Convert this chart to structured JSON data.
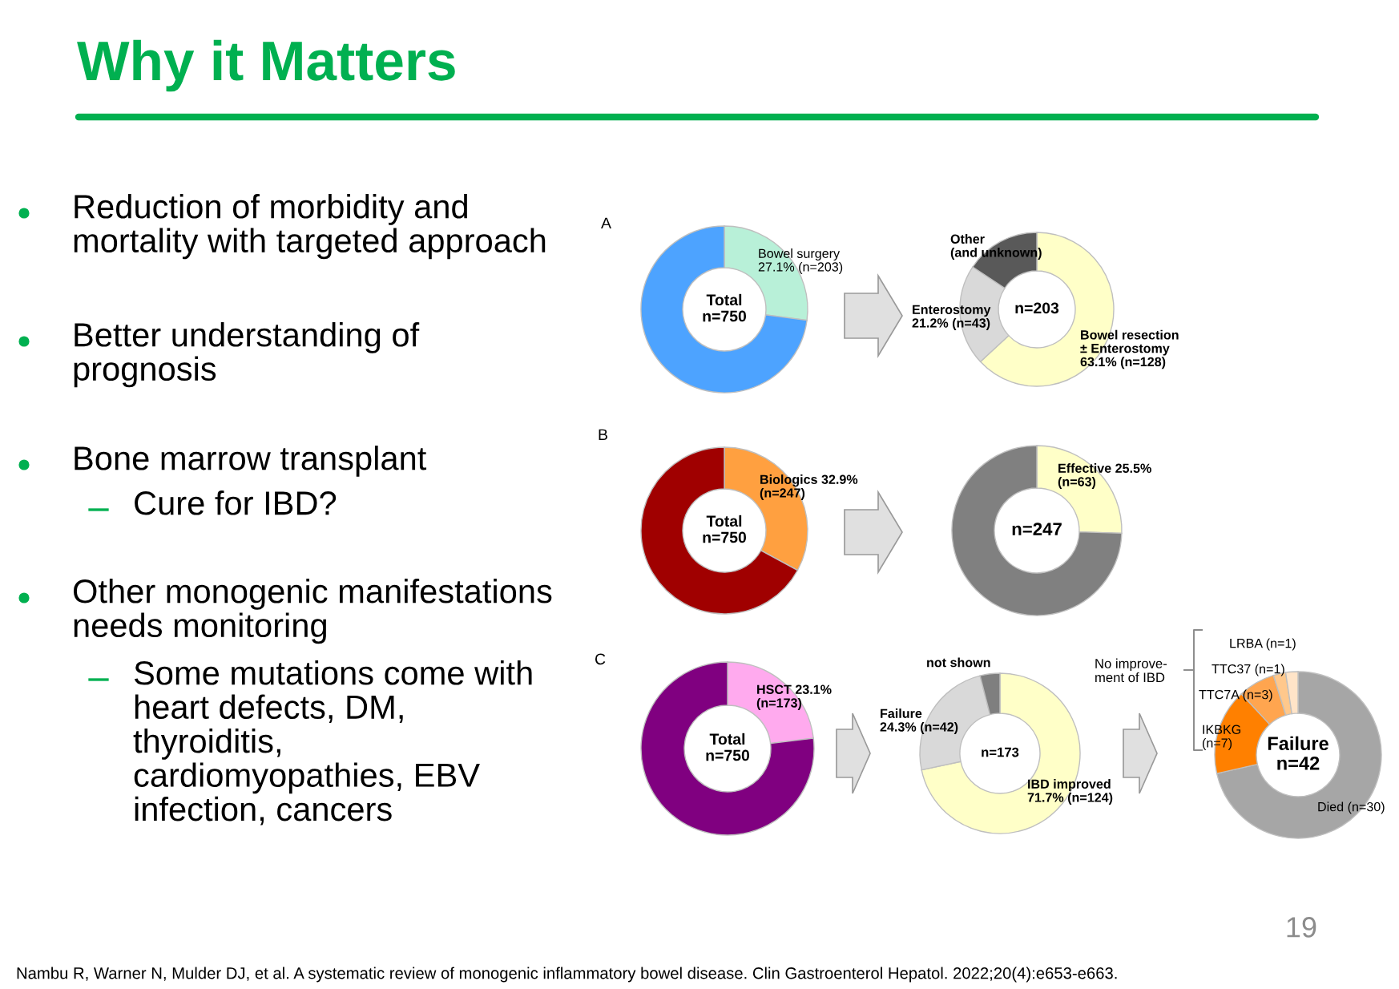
{
  "chart_data": [
    {
      "type": "other",
      "title": "Why it Matters",
      "annotations": [
        "Reduction of morbidity and\nmortality with targeted approach",
        "Better understanding of\nprognosis",
        "Bone marrow transplant",
        "Cure for IBD?",
        "Other monogenic manifestations\nneeds monitoring",
        "Some mutations come with\nheart defects, DM,\nthyroiditis,\ncardiomyopathies, EBV\ninfection, cancers",
        "Nambu R, Warner N, Mulder DJ, et al. A systematic review of monogenic inflammatory bowel disease. Clin Gastroenterol Hepatol. 2022;20(4):e653-e663.",
        "19"
      ]
    },
    {
      "type": "donut",
      "title": "A",
      "categories": [
        "Bowel surgery\n27.1% (n=203)",
        null
      ],
      "values": [
        27.1,
        72.9
      ],
      "colors": [
        "#b8f0d8",
        "#4da3ff"
      ],
      "annotations": [
        "Total\nn=750"
      ]
    },
    {
      "type": "donut",
      "categories": [
        "Bowel resection\n± Enterostomy\n63.1% (n=128)",
        "Enterostomy\n21.2% (n=43)",
        "Other\n(and unknown)"
      ],
      "values": [
        63.1,
        21.2,
        15.7
      ],
      "colors": [
        "#ffffc8",
        "#d9d9d9",
        "#595959"
      ],
      "annotations": [
        "n=203"
      ]
    },
    {
      "type": "donut",
      "title": "B",
      "categories": [
        "Biologics 32.9%\n(n=247)",
        null
      ],
      "values": [
        32.9,
        67.1
      ],
      "colors": [
        "#ffa040",
        "#a00000"
      ],
      "annotations": [
        "Total\nn=750"
      ]
    },
    {
      "type": "donut",
      "categories": [
        "Effective 25.5%\n(n=63)",
        null
      ],
      "values": [
        25.5,
        74.5
      ],
      "colors": [
        "#ffffc8",
        "#808080"
      ],
      "annotations": [
        "n=247"
      ]
    },
    {
      "type": "donut",
      "title": "C",
      "categories": [
        "HSCT 23.1%\n(n=173)",
        null
      ],
      "values": [
        23.1,
        76.9
      ],
      "colors": [
        "#ffaaee",
        "#800080"
      ],
      "annotations": [
        "Total\nn=750"
      ]
    },
    {
      "type": "donut",
      "categories": [
        "IBD improved\n71.7% (n=124)",
        "Failure\n24.3% (n=42)",
        "not shown"
      ],
      "values": [
        71.7,
        24.3,
        4.0
      ],
      "colors": [
        "#ffffc8",
        "#d9d9d9",
        "#7f7f7f"
      ],
      "annotations": [
        "n=173"
      ]
    },
    {
      "type": "donut",
      "categories": [
        "Died (n=30)",
        "IKBKG\n(n=7)",
        "TTC7A (n=3)",
        "TTC37 (n=1)",
        "LRBA (n=1)"
      ],
      "values": [
        30,
        7,
        3,
        1,
        1
      ],
      "colors": [
        "#a6a6a6",
        "#ff8000",
        "#ffa54f",
        "#ffc88c",
        "#ffe4c8"
      ],
      "annotations": [
        "Failure\nn=42",
        "No improve-\nment of IBD"
      ]
    }
  ]
}
